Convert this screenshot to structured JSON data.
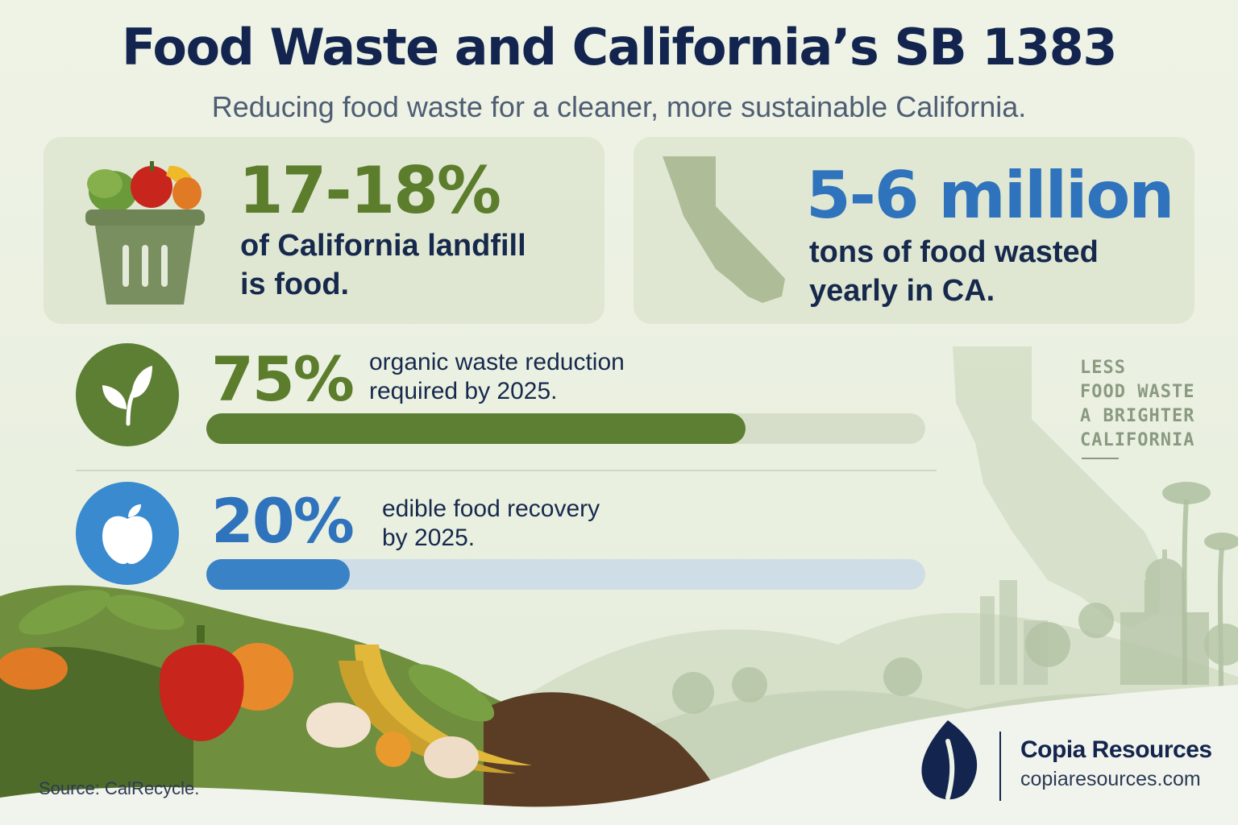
{
  "header": {
    "title": "Food Waste and California’s SB 1383",
    "subtitle": "Reducing food waste for a cleaner, more sustainable California."
  },
  "stats": {
    "landfill": {
      "value": "17-18%",
      "line1": "of California landfill",
      "line2": "is food.",
      "icon": "trash-bin-with-produce-icon"
    },
    "tons": {
      "value": "5-6 million",
      "line1": "tons of food wasted",
      "line2": "yearly in CA.",
      "icon": "california-map-icon"
    }
  },
  "targets": {
    "organic": {
      "value": "75%",
      "line1": "organic waste reduction",
      "line2": "required by 2025.",
      "progress": 0.75,
      "icon": "leaf-sprout-icon",
      "color": "#5d7f33",
      "track": "#d6dec9"
    },
    "recovery": {
      "value": "20%",
      "line1": "edible food recovery",
      "line2": "by 2025.",
      "progress": 0.2,
      "icon": "apple-icon",
      "color": "#3a82c6",
      "track": "#cfdde6"
    }
  },
  "tagline": {
    "line1": "LESS",
    "line2": "FOOD WASTE",
    "line3": "A BRIGHTER",
    "line4": "CALIFORNIA"
  },
  "footer": {
    "source": "Source: CalRecycle.",
    "brand_name": "Copia Resources",
    "brand_url": "copiaresources.com",
    "brand_icon": "leaf-logo-icon"
  },
  "colors": {
    "navy": "#13254f",
    "green": "#5b7d2c",
    "blue": "#2f73bd",
    "background": "#eef3e6"
  }
}
